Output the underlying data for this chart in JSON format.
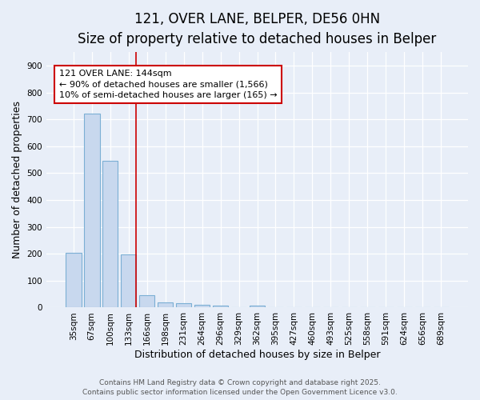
{
  "title_line1": "121, OVER LANE, BELPER, DE56 0HN",
  "title_line2": "Size of property relative to detached houses in Belper",
  "xlabel": "Distribution of detached houses by size in Belper",
  "ylabel": "Number of detached properties",
  "categories": [
    "35sqm",
    "67sqm",
    "100sqm",
    "133sqm",
    "166sqm",
    "198sqm",
    "231sqm",
    "264sqm",
    "296sqm",
    "329sqm",
    "362sqm",
    "395sqm",
    "427sqm",
    "460sqm",
    "493sqm",
    "525sqm",
    "558sqm",
    "591sqm",
    "624sqm",
    "656sqm",
    "689sqm"
  ],
  "values": [
    203,
    720,
    545,
    197,
    46,
    20,
    15,
    11,
    8,
    0,
    7,
    0,
    0,
    0,
    0,
    0,
    0,
    0,
    0,
    0,
    0
  ],
  "bar_color": "#c8d8ee",
  "bar_edge_color": "#7bafd4",
  "red_line_index": 3,
  "annotation_line1": "121 OVER LANE: 144sqm",
  "annotation_line2": "← 90% of detached houses are smaller (1,566)",
  "annotation_line3": "10% of semi-detached houses are larger (165) →",
  "annotation_box_color": "#ffffff",
  "annotation_border_color": "#cc0000",
  "ylim": [
    0,
    950
  ],
  "yticks": [
    0,
    100,
    200,
    300,
    400,
    500,
    600,
    700,
    800,
    900
  ],
  "background_color": "#e8eef8",
  "plot_background_color": "#e8eef8",
  "footer_line1": "Contains HM Land Registry data © Crown copyright and database right 2025.",
  "footer_line2": "Contains public sector information licensed under the Open Government Licence v3.0.",
  "grid_color": "#ffffff",
  "title_fontsize": 12,
  "subtitle_fontsize": 10,
  "axis_label_fontsize": 9,
  "tick_fontsize": 7.5,
  "annotation_fontsize": 8,
  "footer_fontsize": 6.5
}
